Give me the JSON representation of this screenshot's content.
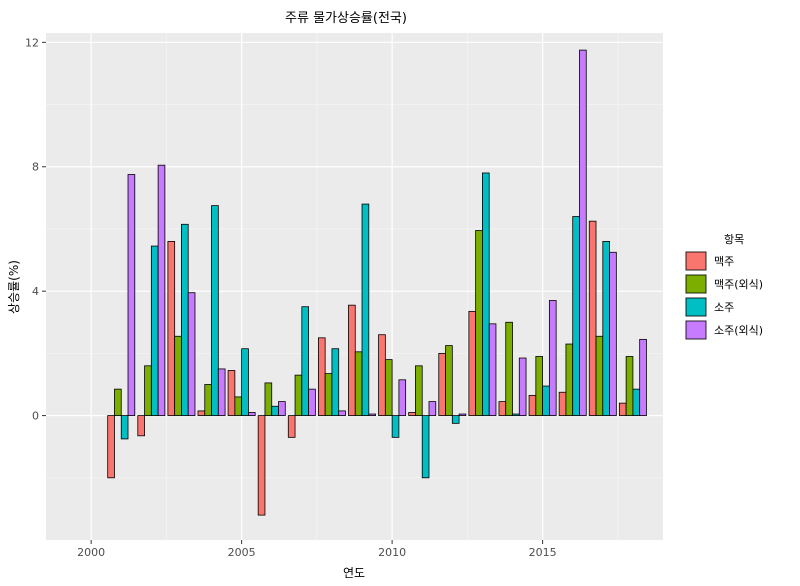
{
  "chart_data": {
    "type": "bar",
    "title": "주류 물가상승률(전국)",
    "xlabel": "연도",
    "ylabel": "상승률(%)",
    "x_ticks": [
      2000,
      2005,
      2010,
      2015
    ],
    "y_ticks": [
      0,
      4,
      8,
      12
    ],
    "xlim": [
      1998.5,
      2019.0
    ],
    "ylim": [
      -4.0,
      12.3
    ],
    "grid": true,
    "legend_position": "right",
    "legend_title": "항목",
    "categories": [
      2001,
      2002,
      2003,
      2004,
      2005,
      2006,
      2007,
      2008,
      2009,
      2010,
      2011,
      2012,
      2013,
      2014,
      2015,
      2016,
      2017,
      2018
    ],
    "series": [
      {
        "name": "맥주",
        "color": "#F8766D",
        "values": [
          -2.0,
          -0.65,
          5.6,
          0.15,
          1.45,
          -3.2,
          -0.7,
          2.5,
          3.55,
          2.6,
          0.1,
          2.0,
          3.35,
          0.45,
          0.65,
          0.75,
          6.25,
          0.4
        ]
      },
      {
        "name": "맥주(외식)",
        "color": "#7CAE00",
        "values": [
          0.85,
          1.6,
          2.55,
          1.0,
          0.6,
          1.05,
          1.3,
          1.35,
          2.05,
          1.8,
          1.6,
          2.25,
          5.95,
          3.0,
          1.9,
          2.3,
          2.55,
          1.9
        ]
      },
      {
        "name": "소주",
        "color": "#00BFC4",
        "values": [
          -0.75,
          5.45,
          6.15,
          6.75,
          2.15,
          0.3,
          3.5,
          2.15,
          6.8,
          -0.7,
          -2.0,
          -0.25,
          7.8,
          0.05,
          0.95,
          6.4,
          5.6,
          0.85
        ]
      },
      {
        "name": "소주(외식)",
        "color": "#C77CFF",
        "values": [
          7.75,
          8.05,
          3.95,
          1.5,
          0.1,
          0.45,
          0.85,
          0.15,
          0.05,
          1.15,
          0.45,
          0.05,
          2.95,
          1.85,
          3.7,
          11.75,
          5.25,
          2.45
        ]
      }
    ]
  }
}
